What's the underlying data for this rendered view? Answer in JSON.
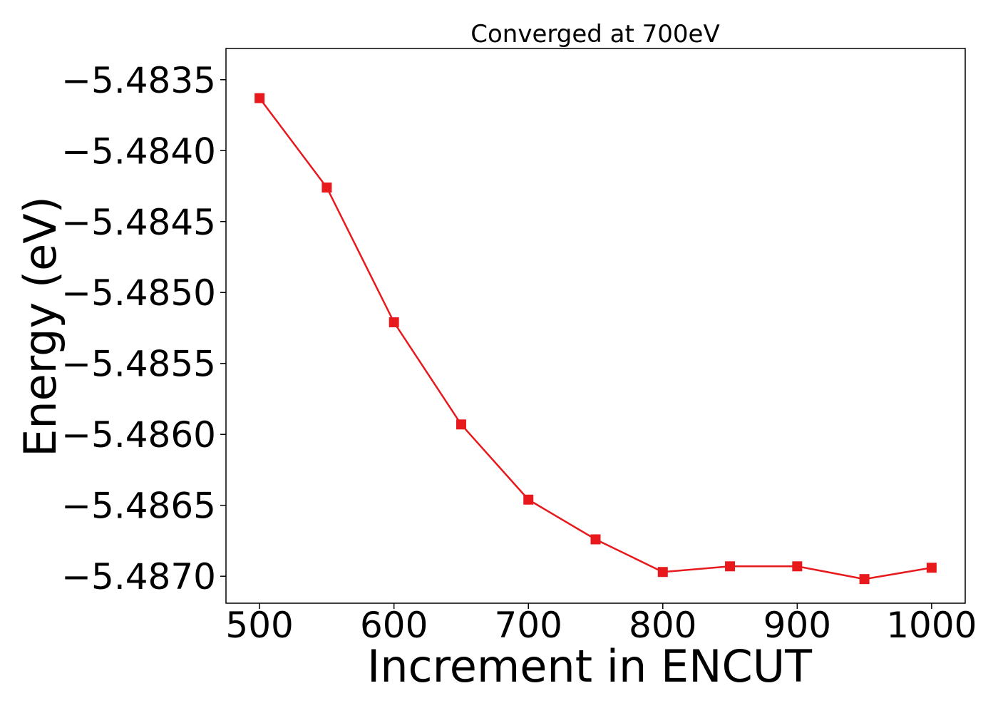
{
  "chart_data": {
    "type": "line",
    "title": "Converged at 700eV",
    "xlabel": "Increment in ENCUT",
    "ylabel": "Energy (eV)",
    "xlim": [
      475,
      1025
    ],
    "ylim": [
      -5.48719,
      -5.48328
    ],
    "x_ticks": [
      500,
      600,
      700,
      800,
      900,
      1000
    ],
    "x_tick_labels": [
      "500",
      "600",
      "700",
      "800",
      "900",
      "1000"
    ],
    "y_ticks": [
      -5.4835,
      -5.484,
      -5.4845,
      -5.485,
      -5.4855,
      -5.486,
      -5.4865,
      -5.487
    ],
    "y_tick_labels": [
      "−5.4835",
      "−5.4840",
      "−5.4845",
      "−5.4850",
      "−5.4855",
      "−5.4860",
      "−5.4865",
      "−5.4870"
    ],
    "grid": false,
    "series": [
      {
        "color": "#e8191c",
        "marker": "square",
        "x": [
          500,
          550,
          600,
          650,
          700,
          750,
          800,
          850,
          900,
          950,
          1000
        ],
        "y": [
          -5.48363,
          -5.48426,
          -5.48521,
          -5.48593,
          -5.48646,
          -5.48674,
          -5.48697,
          -5.48693,
          -5.48693,
          -5.48702,
          -5.48694
        ]
      }
    ]
  }
}
